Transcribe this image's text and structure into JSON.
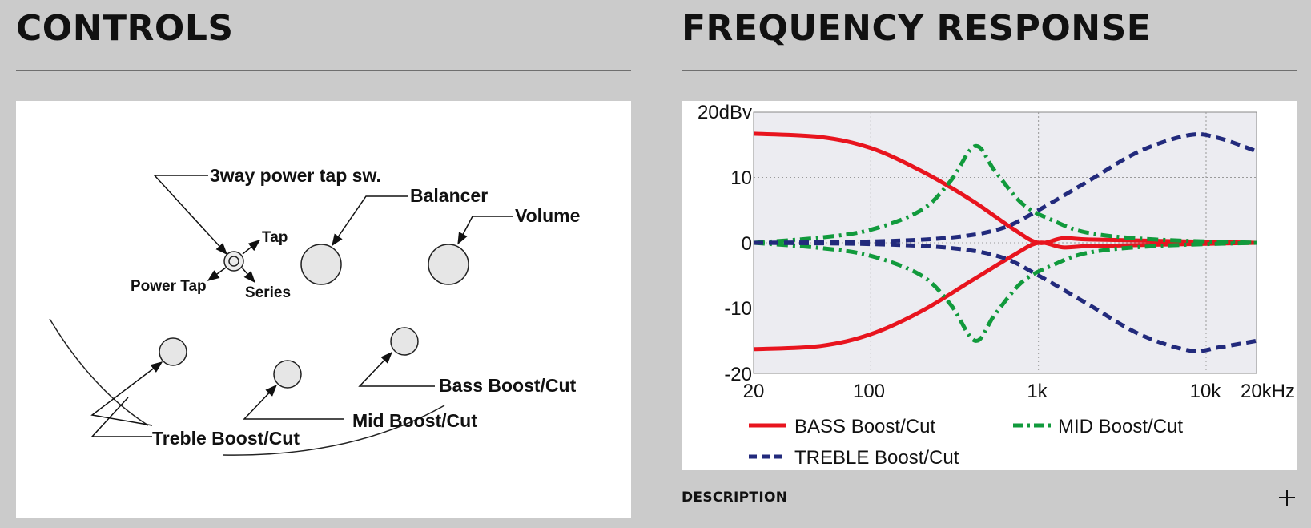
{
  "controls": {
    "title": "CONTROLS",
    "labels": {
      "power_tap_switch": "3way power tap sw.",
      "tap": "Tap",
      "power_tap": "Power Tap",
      "series": "Series",
      "balancer": "Balancer",
      "volume": "Volume",
      "bass": "Bass Boost/Cut",
      "mid": "Mid Boost/Cut",
      "treble": "Treble Boost/Cut"
    }
  },
  "frequency": {
    "title": "FREQUENCY RESPONSE",
    "y_ticks": [
      "20dBv",
      "10",
      "0",
      "-10",
      "-20"
    ],
    "x_ticks": [
      "20",
      "100",
      "1k",
      "10k",
      "20kHz"
    ],
    "legend": {
      "bass": "BASS Boost/Cut",
      "mid": "MID Boost/Cut",
      "treble": "TREBLE Boost/Cut"
    },
    "colors": {
      "bass": "#e8141e",
      "mid": "#119a3c",
      "treble": "#222a7c"
    }
  },
  "chart_data": {
    "type": "line",
    "xscale": "log",
    "xlim": [
      20,
      20000
    ],
    "ylim": [
      -20,
      20
    ],
    "grid": true,
    "legend_position": "bottom",
    "series": [
      {
        "name": "BASS Boost/Cut",
        "style": "solid",
        "color": "#e8141e",
        "points": [
          [
            20,
            16.7
          ],
          [
            50,
            16.2
          ],
          [
            100,
            14.5
          ],
          [
            200,
            11
          ],
          [
            400,
            6.5
          ],
          [
            700,
            2.2
          ],
          [
            1000,
            0
          ],
          [
            1400,
            0.7
          ],
          [
            2000,
            0.5
          ],
          [
            5000,
            0.3
          ],
          [
            20000,
            0
          ]
        ]
      },
      {
        "name": "BASS Boost/Cut",
        "style": "solid",
        "color": "#e8141e",
        "points": [
          [
            20,
            -16.3
          ],
          [
            50,
            -15.8
          ],
          [
            100,
            -14
          ],
          [
            200,
            -10.5
          ],
          [
            400,
            -5.8
          ],
          [
            700,
            -2
          ],
          [
            1000,
            0
          ],
          [
            1400,
            -0.7
          ],
          [
            2000,
            -0.5
          ],
          [
            5000,
            -0.3
          ],
          [
            20000,
            0
          ]
        ]
      },
      {
        "name": "MID Boost/Cut",
        "style": "dashdot",
        "color": "#119a3c",
        "points": [
          [
            20,
            0
          ],
          [
            50,
            0.8
          ],
          [
            100,
            2
          ],
          [
            200,
            5
          ],
          [
            300,
            9.5
          ],
          [
            420,
            14.8
          ],
          [
            550,
            11
          ],
          [
            800,
            6
          ],
          [
            1200,
            3.5
          ],
          [
            2000,
            1.5
          ],
          [
            5000,
            0.5
          ],
          [
            20000,
            0
          ]
        ]
      },
      {
        "name": "MID Boost/Cut",
        "style": "dashdot",
        "color": "#119a3c",
        "points": [
          [
            20,
            0
          ],
          [
            50,
            -0.8
          ],
          [
            100,
            -2
          ],
          [
            200,
            -5
          ],
          [
            300,
            -9.5
          ],
          [
            420,
            -15
          ],
          [
            550,
            -11
          ],
          [
            800,
            -6
          ],
          [
            1200,
            -3.5
          ],
          [
            2000,
            -1.5
          ],
          [
            5000,
            -0.5
          ],
          [
            20000,
            0
          ]
        ]
      },
      {
        "name": "TREBLE Boost/Cut",
        "style": "dashed",
        "color": "#222a7c",
        "points": [
          [
            20,
            0
          ],
          [
            100,
            0.2
          ],
          [
            300,
            0.8
          ],
          [
            600,
            2.2
          ],
          [
            1000,
            5
          ],
          [
            2000,
            9.5
          ],
          [
            4000,
            14
          ],
          [
            8000,
            16.5
          ],
          [
            12000,
            16
          ],
          [
            20000,
            14
          ]
        ]
      },
      {
        "name": "TREBLE Boost/Cut",
        "style": "dashed",
        "color": "#222a7c",
        "points": [
          [
            20,
            0
          ],
          [
            100,
            -0.2
          ],
          [
            300,
            -0.8
          ],
          [
            600,
            -2.2
          ],
          [
            1000,
            -5
          ],
          [
            2000,
            -9.5
          ],
          [
            4000,
            -14
          ],
          [
            8000,
            -16.5
          ],
          [
            12000,
            -16
          ],
          [
            20000,
            -15
          ]
        ]
      }
    ]
  },
  "description": {
    "label": "DESCRIPTION"
  }
}
